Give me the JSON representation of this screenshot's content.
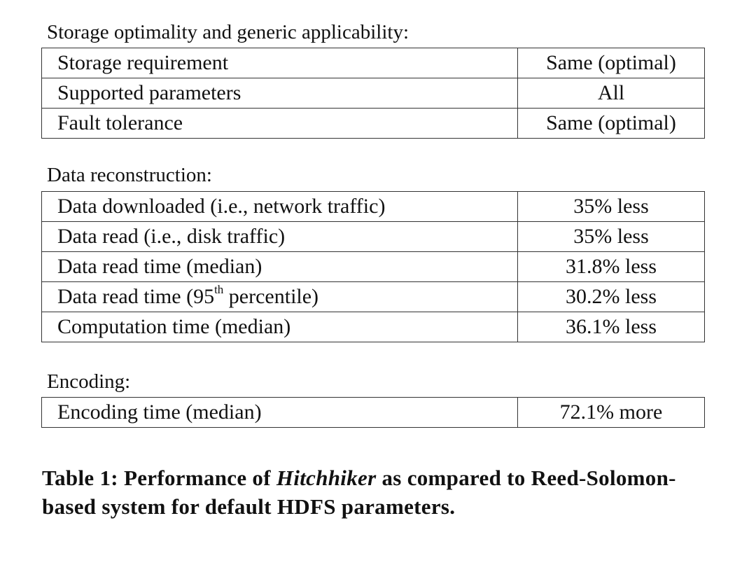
{
  "sections": [
    {
      "title": "Storage optimality and generic applicability:",
      "rows": [
        {
          "metric": "Storage requirement",
          "value": "Same (optimal)"
        },
        {
          "metric": "Supported parameters",
          "value": "All"
        },
        {
          "metric": "Fault tolerance",
          "value": "Same (optimal)"
        }
      ]
    },
    {
      "title": "Data reconstruction:",
      "rows": [
        {
          "metric": "Data downloaded (i.e., network traffic)",
          "value": "35% less"
        },
        {
          "metric": "Data read (i.e., disk traffic)",
          "value": "35% less"
        },
        {
          "metric": "Data read time (median)",
          "value": "31.8% less"
        },
        {
          "metric": "Data read time (95",
          "metric_sup": "th",
          "metric_suffix": " percentile)",
          "value": "30.2% less"
        },
        {
          "metric": "Computation time (median)",
          "value": "36.1% less"
        }
      ]
    },
    {
      "title": "Encoding:",
      "rows": [
        {
          "metric": "Encoding time (median)",
          "value": "72.1% more"
        }
      ]
    }
  ],
  "caption": {
    "prefix": "Table 1: Performance of ",
    "emphasis": "Hitchhiker",
    "suffix": " as compared to Reed-Solomon-based system for default HDFS parameters."
  }
}
